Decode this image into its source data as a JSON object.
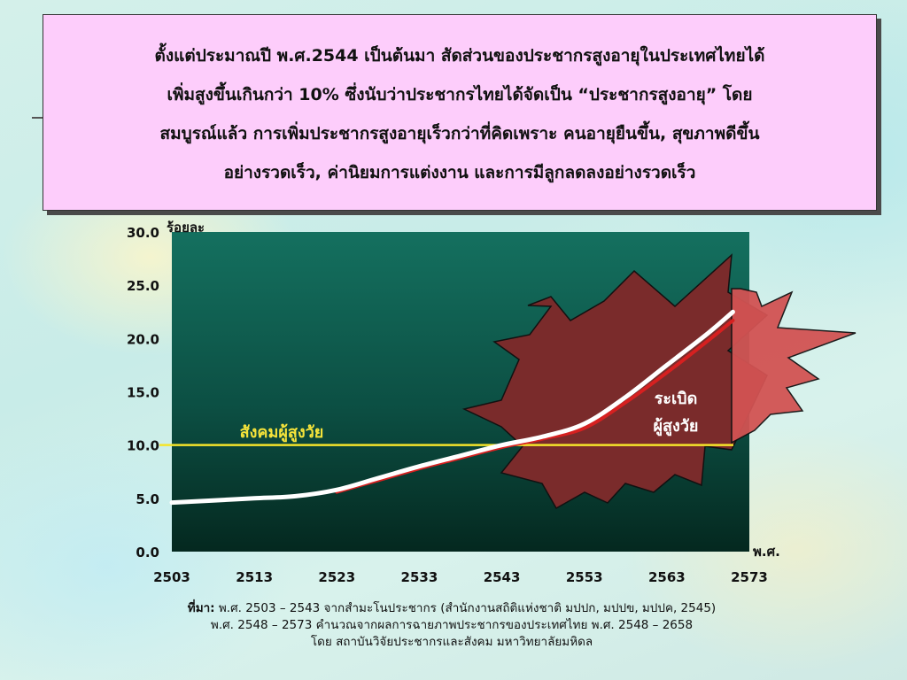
{
  "intro_lines": [
    "ตั้งแต่ประมาณปี พ.ศ.2544 เป็นต้นมา สัดส่วนของประชากรสูงอายุในประเทศไทยได้",
    "เพิ่มสูงขึ้นเกินกว่า 10% ซึ่งนับว่าประชากรไทยได้จัดเป็น “ประชากรสูงอายุ” โดย",
    "สมบูรณ์แล้ว การเพิ่มประชากรสูงอายุเร็วกว่าที่คิดเพราะ คนอายุยืนขึ้น, สุขภาพดีขึ้น",
    "อย่างรวดเร็ว, ค่านิยมการแต่งงาน    และการมีลูกลดลงอย่างรวดเร็ว"
  ],
  "chart_data": {
    "type": "line",
    "ylabel": "ร้อยละ",
    "xlabel": "พ.ศ.",
    "xlim": [
      2503,
      2573
    ],
    "ylim": [
      0,
      30
    ],
    "x_ticks": [
      "2503",
      "2513",
      "2523",
      "2533",
      "2543",
      "2553",
      "2563",
      "2573"
    ],
    "y_ticks": [
      "0.0",
      "5.0",
      "10.0",
      "15.0",
      "20.0",
      "25.0",
      "30.0"
    ],
    "series": [
      {
        "color": "#ffffff",
        "x": [
          2503,
          2508,
          2513,
          2518,
          2523,
          2528,
          2533,
          2538,
          2543,
          2548,
          2553,
          2558,
          2563,
          2568,
          2571
        ],
        "values": [
          4.6,
          4.8,
          5.0,
          5.2,
          5.8,
          6.9,
          8.0,
          9.0,
          10.0,
          10.8,
          12.0,
          14.5,
          17.5,
          20.5,
          22.5
        ]
      },
      {
        "color": "#d62020",
        "x": [
          2523,
          2528,
          2533,
          2538,
          2543,
          2548,
          2553,
          2558,
          2563,
          2568,
          2571
        ],
        "values": [
          5.6,
          6.7,
          7.8,
          8.8,
          9.8,
          10.6,
          11.6,
          14.0,
          16.8,
          19.8,
          21.7
        ]
      }
    ],
    "reference_line": {
      "value": 10.0,
      "color": "#f5e52a",
      "label": "สังคมผู้สูงวัย"
    },
    "burst_label": [
      "ระเบิด",
      "ผู้สูงวัย"
    ],
    "grid": false,
    "background": "#0b4b3e"
  },
  "source": {
    "label": "ที่มา:",
    "line1": "พ.ศ. 2503 – 2543 จากสำมะโนประชากร (สำนักงานสถิติแห่งชาติ มปปก, มปปข, มปปค, 2545)",
    "line2": "พ.ศ. 2548 – 2573 คำนวณจากผลการฉายภาพประชากรของประเทศไทย พ.ศ. 2548 – 2658",
    "line3": "โดย สถาบันวิจัยประชากรและสังคม มหาวิทยาลัยมหิดล"
  },
  "colors": {
    "title_box_bg": "#fdcdfb",
    "plot_bg_top": "#12695a",
    "plot_bg_bottom": "#062f28",
    "burst_dark": "#7a2a2a",
    "burst_light": "#d05050"
  }
}
